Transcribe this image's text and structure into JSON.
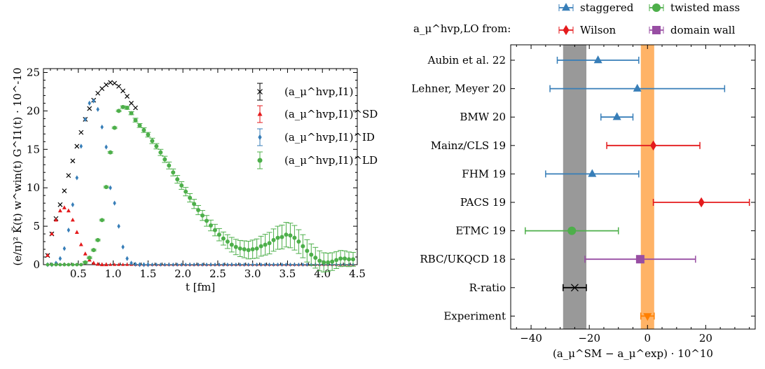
{
  "colors": {
    "black": "#000000",
    "red": "#e41a1c",
    "blue": "#377eb8",
    "green": "#4daf4a",
    "purple": "#984ea3",
    "orange": "#ff7f00",
    "gray": "#999999",
    "orange_band": "#ffb366"
  },
  "chart_data": [
    {
      "type": "scatter",
      "title": "",
      "xlabel": "t [fm]",
      "ylabel": "(e/π)² K̃(t) w^win(t) G^I1(t) · 10^-10",
      "xlim": [
        0,
        4.5
      ],
      "ylim": [
        0,
        25.5
      ],
      "xticks": [
        "0.5",
        "1.0",
        "1.5",
        "2.0",
        "2.5",
        "3.0",
        "3.5",
        "4.0",
        "4.5"
      ],
      "yticks": [
        "0",
        "5",
        "10",
        "15",
        "20",
        "25"
      ],
      "legend_position": "top-right",
      "series": [
        {
          "name": "(a_μ^hvp,I1)",
          "marker": "x",
          "color": "#000000",
          "x": [
            0.06,
            0.12,
            0.18,
            0.24,
            0.3,
            0.36,
            0.42,
            0.48,
            0.54,
            0.6,
            0.66,
            0.72,
            0.78,
            0.84,
            0.9,
            0.96,
            1.02,
            1.08,
            1.14,
            1.2,
            1.26,
            1.32
          ],
          "y": [
            1.2,
            4.0,
            6.0,
            7.8,
            9.6,
            11.6,
            13.5,
            15.4,
            17.2,
            18.9,
            20.3,
            21.4,
            22.3,
            22.9,
            23.4,
            23.7,
            23.6,
            23.2,
            22.6,
            21.9,
            21.0,
            20.4
          ]
        },
        {
          "name": "(a_μ^hvp,I1)^SD",
          "marker": "triangle",
          "color": "#e41a1c",
          "x": [
            0.06,
            0.12,
            0.18,
            0.24,
            0.3,
            0.36,
            0.42,
            0.48,
            0.54,
            0.6,
            0.66,
            0.72,
            0.78,
            0.84,
            0.9
          ],
          "y": [
            1.2,
            4.0,
            5.8,
            7.0,
            7.4,
            7.0,
            5.8,
            4.2,
            2.6,
            1.4,
            0.6,
            0.2,
            0.05,
            0.0,
            0.0
          ]
        },
        {
          "name": "(a_μ^hvp,I1)^ID",
          "marker": "diamond",
          "color": "#377eb8",
          "x": [
            0.06,
            0.12,
            0.18,
            0.24,
            0.3,
            0.36,
            0.42,
            0.48,
            0.54,
            0.6,
            0.66,
            0.72,
            0.78,
            0.84,
            0.9,
            0.96,
            1.02,
            1.08,
            1.14,
            1.2,
            1.26,
            1.32,
            1.38,
            1.44,
            1.5
          ],
          "y": [
            0.0,
            0.0,
            0.2,
            0.8,
            2.1,
            4.5,
            7.8,
            11.3,
            15.4,
            18.9,
            21.0,
            21.3,
            20.2,
            17.9,
            15.3,
            10.0,
            8.0,
            5.0,
            2.3,
            0.8,
            0.2,
            0.05,
            0.0,
            0.0,
            0.0
          ]
        },
        {
          "name": "(a_μ^hvp,I1)^LD",
          "marker": "circle",
          "color": "#4daf4a",
          "x": [
            0.6,
            0.66,
            0.72,
            0.78,
            0.84,
            0.9,
            0.96,
            1.02,
            1.08,
            1.14,
            1.2,
            1.26,
            1.32,
            1.38,
            1.44,
            1.5,
            1.56,
            1.62,
            1.68,
            1.74,
            1.8,
            1.86,
            1.92,
            1.98,
            2.04,
            2.1,
            2.16,
            2.22,
            2.28,
            2.34,
            2.4,
            2.46,
            2.52,
            2.58,
            2.64,
            2.7,
            2.76,
            2.82,
            2.88,
            2.94,
            3.0,
            3.06,
            3.12,
            3.18,
            3.24,
            3.3,
            3.36,
            3.42,
            3.48,
            3.54,
            3.6,
            3.66,
            3.72,
            3.78,
            3.84,
            3.9,
            3.96,
            4.02,
            4.08,
            4.14,
            4.2,
            4.26,
            4.32,
            4.38,
            4.44
          ],
          "y": [
            0.3,
            0.9,
            1.9,
            3.2,
            5.8,
            10.1,
            14.6,
            17.8,
            20.0,
            20.5,
            20.4,
            19.7,
            18.8,
            18.1,
            17.5,
            16.9,
            16.1,
            15.4,
            14.6,
            13.7,
            12.9,
            12.0,
            11.1,
            10.3,
            9.5,
            8.7,
            7.9,
            7.1,
            6.4,
            5.7,
            5.1,
            4.5,
            3.9,
            3.4,
            3.0,
            2.6,
            2.3,
            2.1,
            2.0,
            1.9,
            2.0,
            2.1,
            2.4,
            2.6,
            2.8,
            3.2,
            3.5,
            3.6,
            3.9,
            3.8,
            3.5,
            3.0,
            2.4,
            1.8,
            1.3,
            0.9,
            0.5,
            0.3,
            0.3,
            0.4,
            0.6,
            0.8,
            0.8,
            0.7,
            0.7
          ],
          "err": [
            0.1,
            0.1,
            0.1,
            0.1,
            0.1,
            0.1,
            0.1,
            0.1,
            0.1,
            0.15,
            0.2,
            0.2,
            0.25,
            0.25,
            0.3,
            0.3,
            0.35,
            0.35,
            0.4,
            0.4,
            0.45,
            0.45,
            0.5,
            0.5,
            0.55,
            0.55,
            0.6,
            0.6,
            0.65,
            0.7,
            0.7,
            0.75,
            0.8,
            0.85,
            0.9,
            0.95,
            1.0,
            1.05,
            1.1,
            1.15,
            1.2,
            1.25,
            1.3,
            1.35,
            1.4,
            1.45,
            1.5,
            1.55,
            1.6,
            1.6,
            1.6,
            1.55,
            1.5,
            1.45,
            1.4,
            1.35,
            1.3,
            1.25,
            1.2,
            1.15,
            1.1,
            1.05,
            1.0,
            0.95,
            0.9
          ]
        }
      ]
    },
    {
      "type": "scatter",
      "title": "",
      "xlabel": "(a_μ^SM − a_μ^exp) · 10^10",
      "ylabel": "",
      "xlim": [
        -47,
        37
      ],
      "xticks": [
        "−40",
        "−20",
        "0",
        "20"
      ],
      "legend_title": "a_μ^hvp,LO from:",
      "legend_position": "top",
      "legend": [
        {
          "name": "staggered",
          "marker": "triangle",
          "color": "#377eb8"
        },
        {
          "name": "twisted mass",
          "marker": "circle",
          "color": "#4daf4a"
        },
        {
          "name": "Wilson",
          "marker": "diamond",
          "color": "#e41a1c"
        },
        {
          "name": "domain wall",
          "marker": "square",
          "color": "#984ea3"
        }
      ],
      "bands": [
        {
          "name": "R-ratio band",
          "center": -25,
          "halfwidth": 4,
          "color": "#999999"
        },
        {
          "name": "Experiment band",
          "center": 0,
          "halfwidth": 2.3,
          "color": "#ffb366"
        }
      ],
      "points": [
        {
          "label": "Aubin et al. 22",
          "value": -17,
          "err_lo": 14,
          "err_hi": 14,
          "marker": "triangle",
          "color": "#377eb8"
        },
        {
          "label": "Lehner, Meyer 20",
          "value": -3.5,
          "err_lo": 30,
          "err_hi": 30,
          "marker": "triangle",
          "color": "#377eb8"
        },
        {
          "label": "BMW 20",
          "value": -10.5,
          "err_lo": 5.5,
          "err_hi": 5.5,
          "marker": "triangle",
          "color": "#377eb8"
        },
        {
          "label": "Mainz/CLS 19",
          "value": 2,
          "err_lo": 16,
          "err_hi": 16,
          "marker": "diamond",
          "color": "#e41a1c"
        },
        {
          "label": "FHM 19",
          "value": -19,
          "err_lo": 16,
          "err_hi": 16,
          "marker": "triangle",
          "color": "#377eb8"
        },
        {
          "label": "PACS 19",
          "value": 18.5,
          "err_lo": 16.5,
          "err_hi": 16.5,
          "marker": "diamond",
          "color": "#e41a1c"
        },
        {
          "label": "ETMC 19",
          "value": -26,
          "err_lo": 16,
          "err_hi": 16,
          "marker": "circle",
          "color": "#4daf4a"
        },
        {
          "label": "RBC/UKQCD 18",
          "value": -2.5,
          "err_lo": 19,
          "err_hi": 19,
          "marker": "square",
          "color": "#984ea3"
        },
        {
          "label": "R-ratio",
          "value": -25,
          "err_lo": 4,
          "err_hi": 4,
          "marker": "x",
          "color": "#000000"
        },
        {
          "label": "Experiment",
          "value": 0,
          "err_lo": 2.3,
          "err_hi": 2.3,
          "marker": "triangle-down",
          "color": "#ff7f00"
        }
      ]
    }
  ]
}
